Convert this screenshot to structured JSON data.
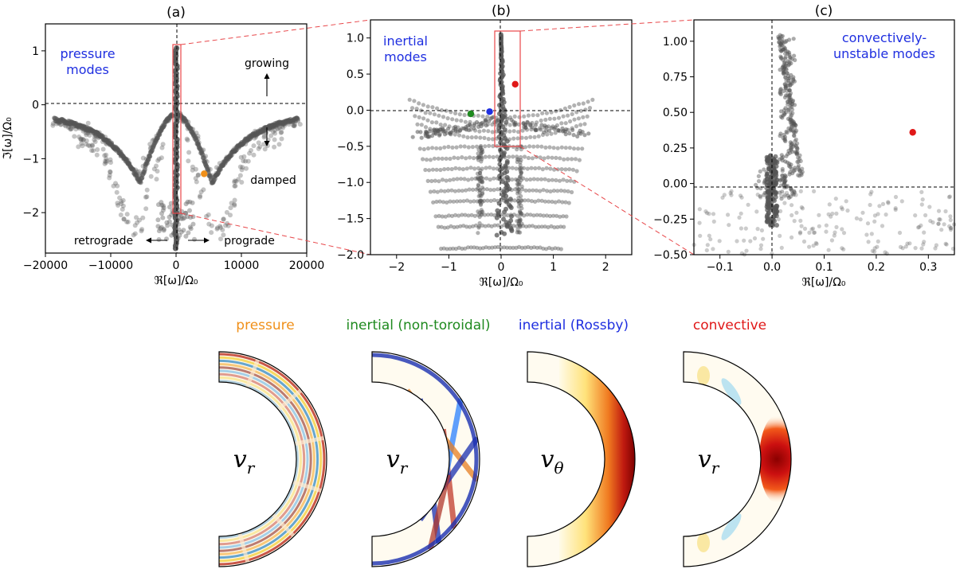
{
  "chart_data": [
    {
      "type": "scatter",
      "title": "(a)",
      "xlabel": "ℜ[ω]/Ω₀",
      "ylabel": "ℑ[ω]/Ω₀",
      "xlim": [
        -20000,
        20000
      ],
      "ylim": [
        -2.75,
        1.5
      ],
      "xticks": [
        -20000,
        -10000,
        0,
        10000,
        20000
      ],
      "xtick_labels": [
        "−20000",
        "−10000",
        "0",
        "10000",
        "20000"
      ],
      "yticks": [
        1,
        0,
        -1,
        -2
      ],
      "ytick_labels": [
        "1",
        "0",
        "−1",
        "−2"
      ],
      "mode_label": "pressure\nmodes",
      "annotations": [
        "growing",
        "damped",
        "retrograde",
        "prograde"
      ],
      "highlight_points": [
        {
          "x": 4300,
          "y": -1.28,
          "color": "#f0901a",
          "name": "pressure"
        }
      ],
      "zoom_box": {
        "x": [
          -300,
          300
        ],
        "y": [
          -1.95,
          1.08
        ]
      }
    },
    {
      "type": "scatter",
      "title": "(b)",
      "xlabel": "ℜ[ω]/Ω₀",
      "ylabel": "",
      "xlim": [
        -2.5,
        2.5
      ],
      "ylim": [
        -2.0,
        1.25
      ],
      "xticks": [
        -2,
        -1,
        0,
        1,
        2
      ],
      "xtick_labels": [
        "−2",
        "−1",
        "0",
        "1",
        "2"
      ],
      "yticks": [
        1.0,
        0.5,
        0.0,
        -0.5,
        -1.0,
        -1.5,
        -2.0
      ],
      "ytick_labels": [
        "1.0",
        "0.5",
        "0.0",
        "−0.5",
        "−1.0",
        "−1.5",
        "−2.0"
      ],
      "mode_label": "inertial\nmodes",
      "highlight_points": [
        {
          "x": 0.27,
          "y": 0.36,
          "color": "#e01818",
          "name": "convective"
        },
        {
          "x": -0.22,
          "y": -0.02,
          "color": "#1f2fe0",
          "name": "inertial (Rossby)"
        },
        {
          "x": -0.58,
          "y": -0.05,
          "color": "#1f8a1f",
          "name": "inertial (non-toroidal)"
        }
      ],
      "zoom_box": {
        "x": [
          -0.15,
          0.35
        ],
        "y": [
          -0.5,
          1.1
        ]
      }
    },
    {
      "type": "scatter",
      "title": "(c)",
      "xlabel": "ℜ[ω]/Ω₀",
      "ylabel": "",
      "xlim": [
        -0.15,
        0.35
      ],
      "ylim": [
        -0.5,
        1.15
      ],
      "xticks": [
        -0.1,
        0.0,
        0.1,
        0.2,
        0.3
      ],
      "xtick_labels": [
        "−0.1",
        "0.0",
        "0.1",
        "0.2",
        "0.3"
      ],
      "yticks": [
        1.0,
        0.75,
        0.5,
        0.25,
        0.0,
        -0.25,
        -0.5
      ],
      "ytick_labels": [
        "1.00",
        "0.75",
        "0.50",
        "0.25",
        "0.00",
        "−0.25",
        "−0.50"
      ],
      "mode_label": "convectively-\nunstable modes",
      "highlight_points": [
        {
          "x": 0.27,
          "y": 0.36,
          "color": "#e01818",
          "name": "convective"
        }
      ]
    }
  ],
  "eigenfunctions": [
    {
      "title": "pressure",
      "title_color": "#f0901a",
      "variable": "v",
      "subscript": "r"
    },
    {
      "title": "inertial (non-toroidal)",
      "title_color": "#1f8a1f",
      "variable": "v",
      "subscript": "r"
    },
    {
      "title": "inertial (Rossby)",
      "title_color": "#1f2fe0",
      "variable": "v",
      "subscript": "θ"
    },
    {
      "title": "convective",
      "title_color": "#e01818",
      "variable": "v",
      "subscript": "r"
    }
  ],
  "colors": {
    "marker": "#555555",
    "axis": "#000000",
    "zoom": "#e8474a",
    "label": "#1f2fe0"
  }
}
